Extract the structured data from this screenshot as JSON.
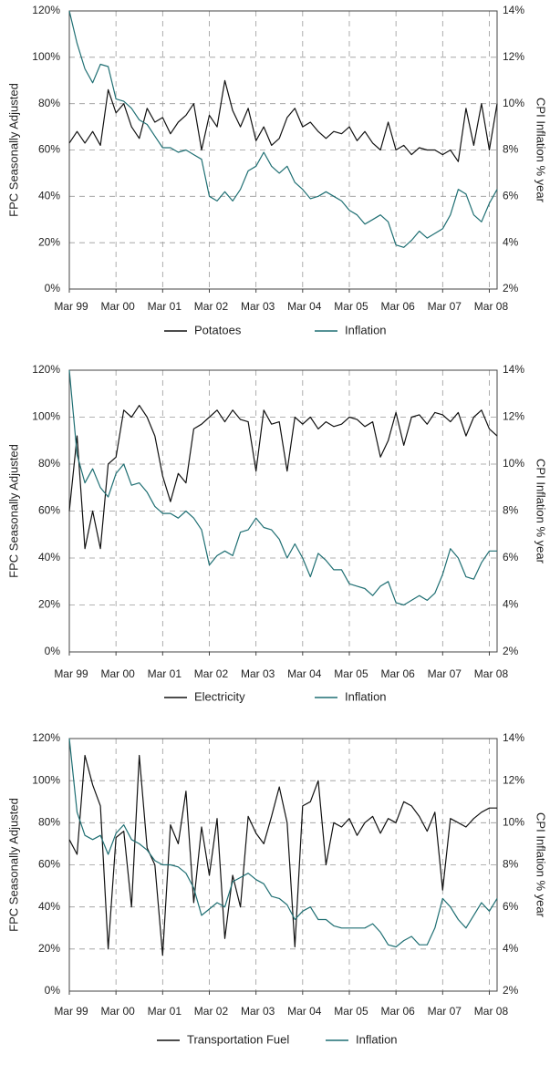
{
  "chart_data": [
    {
      "type": "line",
      "y_label": "FPC Seasonally Adjusted",
      "y2_label": "CPI Inflation % year",
      "x": [
        "Mar 99",
        "May 99",
        "Jul 99",
        "Sep 99",
        "Nov 99",
        "Jan 00",
        "Mar 00",
        "May 00",
        "Jul 00",
        "Sep 00",
        "Nov 00",
        "Jan 01",
        "Mar 01",
        "May 01",
        "Jul 01",
        "Sep 01",
        "Nov 01",
        "Jan 02",
        "Mar 02",
        "May 02",
        "Jul 02",
        "Sep 02",
        "Nov 02",
        "Jan 03",
        "Mar 03",
        "May 03",
        "Jul 03",
        "Sep 03",
        "Nov 03",
        "Jan 04",
        "Mar 04",
        "May 04",
        "Jul 04",
        "Sep 04",
        "Nov 04",
        "Jan 05",
        "Mar 05",
        "May 05",
        "Jul 05",
        "Sep 05",
        "Nov 05",
        "Jan 06",
        "Mar 06",
        "May 06",
        "Jul 06",
        "Sep 06",
        "Nov 06",
        "Jan 07",
        "Mar 07",
        "May 07",
        "Jul 07",
        "Sep 07",
        "Nov 07",
        "Jan 08",
        "Mar 08",
        "May 08"
      ],
      "xticks": [
        "Mar 99",
        "Mar 00",
        "Mar 01",
        "Mar 02",
        "Mar 03",
        "Mar 04",
        "Mar 05",
        "Mar 06",
        "Mar 07",
        "Mar 08"
      ],
      "ylim": [
        0,
        120
      ],
      "yticks": [
        {
          "value": 0,
          "label": "0%"
        },
        {
          "value": 20,
          "label": "20%"
        },
        {
          "value": 40,
          "label": "40%"
        },
        {
          "value": 60,
          "label": "60%"
        },
        {
          "value": 80,
          "label": "80%"
        },
        {
          "value": 100,
          "label": "100%"
        },
        {
          "value": 120,
          "label": "120%"
        }
      ],
      "y2lim": [
        2,
        14
      ],
      "y2ticks": [
        {
          "value": 2,
          "label": "2%"
        },
        {
          "value": 4,
          "label": "4%"
        },
        {
          "value": 6,
          "label": "6%"
        },
        {
          "value": 8,
          "label": "8%"
        },
        {
          "value": 10,
          "label": "10%"
        },
        {
          "value": 12,
          "label": "12%"
        },
        {
          "value": 14,
          "label": "14%"
        }
      ],
      "grid": true,
      "series": [
        {
          "name": "Potatoes",
          "color": "#111111",
          "values": [
            63,
            68,
            63,
            68,
            62,
            86,
            76,
            80,
            70,
            65,
            78,
            72,
            74,
            67,
            72,
            75,
            80,
            60,
            75,
            70,
            90,
            77,
            70,
            78,
            64,
            70,
            62,
            65,
            74,
            78,
            70,
            72,
            68,
            65,
            68,
            67,
            70,
            64,
            68,
            63,
            60,
            72,
            60,
            62,
            58,
            61,
            60,
            60,
            58,
            60,
            55,
            78,
            62,
            80,
            60,
            80
          ]
        },
        {
          "name": "Inflation",
          "color": "#1f6f73",
          "axis": "y2",
          "values": [
            14,
            12.6,
            11.5,
            10.9,
            11.7,
            11.6,
            10.2,
            10.1,
            9.8,
            9.3,
            9.1,
            8.6,
            8.1,
            8.1,
            7.9,
            8.0,
            7.8,
            7.6,
            6.0,
            5.8,
            6.2,
            5.8,
            6.3,
            7.1,
            7.3,
            7.9,
            7.3,
            7.0,
            7.3,
            6.6,
            6.3,
            5.9,
            6.0,
            6.2,
            6.0,
            5.8,
            5.4,
            5.2,
            4.8,
            5.0,
            5.2,
            4.9,
            3.9,
            3.8,
            4.1,
            4.5,
            4.2,
            4.4,
            4.6,
            5.2,
            6.3,
            6.1,
            5.2,
            4.9,
            5.7,
            6.3
          ]
        }
      ]
    },
    {
      "type": "line",
      "y_label": "FPC Seasonally Adjusted",
      "y2_label": "CPI Inflation % year",
      "x": [
        "Mar 99",
        "May 99",
        "Jul 99",
        "Sep 99",
        "Nov 99",
        "Jan 00",
        "Mar 00",
        "May 00",
        "Jul 00",
        "Sep 00",
        "Nov 00",
        "Jan 01",
        "Mar 01",
        "May 01",
        "Jul 01",
        "Sep 01",
        "Nov 01",
        "Jan 02",
        "Mar 02",
        "May 02",
        "Jul 02",
        "Sep 02",
        "Nov 02",
        "Jan 03",
        "Mar 03",
        "May 03",
        "Jul 03",
        "Sep 03",
        "Nov 03",
        "Jan 04",
        "Mar 04",
        "May 04",
        "Jul 04",
        "Sep 04",
        "Nov 04",
        "Jan 05",
        "Mar 05",
        "May 05",
        "Jul 05",
        "Sep 05",
        "Nov 05",
        "Jan 06",
        "Mar 06",
        "May 06",
        "Jul 06",
        "Sep 06",
        "Nov 06",
        "Jan 07",
        "Mar 07",
        "May 07",
        "Jul 07",
        "Sep 07",
        "Nov 07",
        "Jan 08",
        "Mar 08",
        "May 08"
      ],
      "xticks": [
        "Mar 99",
        "Mar 00",
        "Mar 01",
        "Mar 02",
        "Mar 03",
        "Mar 04",
        "Mar 05",
        "Mar 06",
        "Mar 07",
        "Mar 08"
      ],
      "ylim": [
        0,
        120
      ],
      "yticks": [
        {
          "value": 0,
          "label": "0%"
        },
        {
          "value": 20,
          "label": "20%"
        },
        {
          "value": 40,
          "label": "40%"
        },
        {
          "value": 60,
          "label": "60%"
        },
        {
          "value": 80,
          "label": "80%"
        },
        {
          "value": 100,
          "label": "100%"
        },
        {
          "value": 120,
          "label": "120%"
        }
      ],
      "y2lim": [
        2,
        14
      ],
      "y2ticks": [
        {
          "value": 2,
          "label": "2%"
        },
        {
          "value": 4,
          "label": "4%"
        },
        {
          "value": 6,
          "label": "6%"
        },
        {
          "value": 8,
          "label": "8%"
        },
        {
          "value": 10,
          "label": "10%"
        },
        {
          "value": 12,
          "label": "12%"
        },
        {
          "value": 14,
          "label": "14%"
        }
      ],
      "grid": true,
      "series": [
        {
          "name": "Electricity",
          "color": "#111111",
          "values": [
            60,
            92,
            44,
            60,
            44,
            80,
            83,
            103,
            100,
            105,
            100,
            92,
            75,
            64,
            76,
            72,
            95,
            97,
            100,
            103,
            98,
            103,
            99,
            98,
            77,
            103,
            97,
            98,
            77,
            100,
            97,
            100,
            95,
            98,
            96,
            97,
            100,
            99,
            96,
            98,
            83,
            90,
            102,
            88,
            100,
            101,
            97,
            102,
            101,
            98,
            102,
            92,
            100,
            103,
            95,
            92
          ]
        },
        {
          "name": "Inflation",
          "color": "#1f6f73",
          "axis": "y2",
          "values": [
            14,
            10.4,
            9.2,
            9.8,
            9.0,
            8.6,
            9.6,
            10.0,
            9.1,
            9.2,
            8.8,
            8.2,
            7.9,
            7.9,
            7.7,
            8.0,
            7.7,
            7.2,
            5.7,
            6.1,
            6.3,
            6.1,
            7.1,
            7.2,
            7.7,
            7.3,
            7.2,
            6.8,
            6.0,
            6.6,
            6.0,
            5.2,
            6.2,
            5.9,
            5.5,
            5.5,
            4.9,
            4.8,
            4.7,
            4.4,
            4.8,
            5.0,
            4.1,
            4.0,
            4.2,
            4.4,
            4.2,
            4.5,
            5.3,
            6.4,
            6.0,
            5.2,
            5.1,
            5.8,
            6.3,
            6.3
          ]
        }
      ]
    },
    {
      "type": "line",
      "y_label": "FPC Seasonally Adjusted",
      "y2_label": "CPI Inflation % year",
      "x": [
        "Mar 99",
        "May 99",
        "Jul 99",
        "Sep 99",
        "Nov 99",
        "Jan 00",
        "Mar 00",
        "May 00",
        "Jul 00",
        "Sep 00",
        "Nov 00",
        "Jan 01",
        "Mar 01",
        "May 01",
        "Jul 01",
        "Sep 01",
        "Nov 01",
        "Jan 02",
        "Mar 02",
        "May 02",
        "Jul 02",
        "Sep 02",
        "Nov 02",
        "Jan 03",
        "Mar 03",
        "May 03",
        "Jul 03",
        "Sep 03",
        "Nov 03",
        "Jan 04",
        "Mar 04",
        "May 04",
        "Jul 04",
        "Sep 04",
        "Nov 04",
        "Jan 05",
        "Mar 05",
        "May 05",
        "Jul 05",
        "Sep 05",
        "Nov 05",
        "Jan 06",
        "Mar 06",
        "May 06",
        "Jul 06",
        "Sep 06",
        "Nov 06",
        "Jan 07",
        "Mar 07",
        "May 07",
        "Jul 07",
        "Sep 07",
        "Nov 07",
        "Jan 08",
        "Mar 08",
        "May 08"
      ],
      "xticks": [
        "Mar 99",
        "Mar 00",
        "Mar 01",
        "Mar 02",
        "Mar 03",
        "Mar 04",
        "Mar 05",
        "Mar 06",
        "Mar 07",
        "Mar 08"
      ],
      "ylim": [
        0,
        120
      ],
      "yticks": [
        {
          "value": 0,
          "label": "0%"
        },
        {
          "value": 20,
          "label": "20%"
        },
        {
          "value": 40,
          "label": "40%"
        },
        {
          "value": 60,
          "label": "60%"
        },
        {
          "value": 80,
          "label": "80%"
        },
        {
          "value": 100,
          "label": "100%"
        },
        {
          "value": 120,
          "label": "120%"
        }
      ],
      "y2lim": [
        2,
        14
      ],
      "y2ticks": [
        {
          "value": 2,
          "label": "2%"
        },
        {
          "value": 4,
          "label": "4%"
        },
        {
          "value": 6,
          "label": "6%"
        },
        {
          "value": 8,
          "label": "8%"
        },
        {
          "value": 10,
          "label": "10%"
        },
        {
          "value": 12,
          "label": "12%"
        },
        {
          "value": 14,
          "label": "14%"
        }
      ],
      "grid": true,
      "series": [
        {
          "name": "Transportation Fuel",
          "color": "#111111",
          "values": [
            72,
            65,
            112,
            98,
            88,
            20,
            73,
            76,
            40,
            112,
            68,
            60,
            17,
            79,
            70,
            95,
            42,
            78,
            55,
            82,
            25,
            55,
            40,
            83,
            75,
            70,
            83,
            97,
            80,
            21,
            88,
            90,
            100,
            60,
            80,
            78,
            82,
            74,
            80,
            83,
            75,
            82,
            80,
            90,
            88,
            83,
            76,
            85,
            48,
            82,
            80,
            78,
            82,
            85,
            87,
            87
          ]
        },
        {
          "name": "Inflation",
          "color": "#1f6f73",
          "axis": "y2",
          "values": [
            14,
            10.5,
            9.4,
            9.2,
            9.4,
            8.5,
            9.5,
            9.9,
            9.2,
            9.0,
            8.7,
            8.2,
            8.0,
            8.0,
            7.9,
            7.6,
            6.9,
            5.6,
            5.9,
            6.2,
            6.0,
            7.2,
            7.4,
            7.6,
            7.3,
            7.1,
            6.5,
            6.4,
            6.1,
            5.4,
            5.8,
            6.0,
            5.4,
            5.4,
            5.1,
            5.0,
            5.0,
            5.0,
            5.0,
            5.2,
            4.8,
            4.2,
            4.1,
            4.4,
            4.6,
            4.2,
            4.2,
            5.0,
            6.4,
            6.0,
            5.4,
            5.0,
            5.6,
            6.2,
            5.8,
            6.4
          ]
        }
      ]
    }
  ]
}
